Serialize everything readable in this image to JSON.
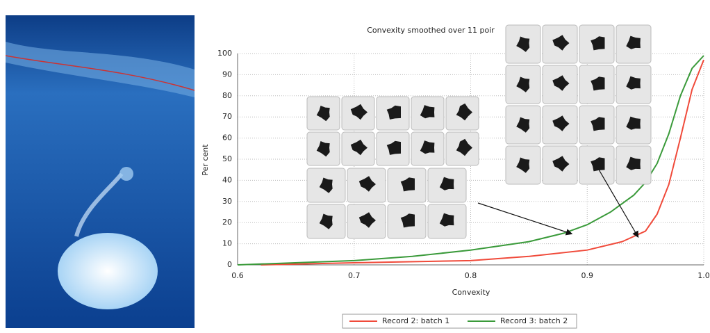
{
  "chart_data": {
    "type": "line",
    "title": "Convexity smoothed over 11 poir",
    "x_label": "Convexity",
    "y_label": "Per cent",
    "xlim": [
      0.6,
      1
    ],
    "xticks": [
      0.6,
      0.7,
      0.8,
      0.9,
      {
        "value": 1,
        "label": "1.0"
      }
    ],
    "ylim": [
      0,
      100
    ],
    "yticks": [
      0,
      10,
      20,
      30,
      40,
      50,
      60,
      70,
      80,
      90,
      100
    ],
    "grid": true,
    "legend": "bottom",
    "series": [
      {
        "name": "Record 2: batch 1",
        "color": "#f04a3a",
        "x": [
          0.62,
          0.7,
          0.8,
          0.85,
          0.9,
          0.93,
          0.95,
          0.96,
          0.97,
          0.98,
          0.99,
          1
        ],
        "values": [
          0,
          1,
          2,
          4,
          7,
          11,
          16,
          24,
          38,
          60,
          83,
          97
        ]
      },
      {
        "name": "Record 3: batch 2",
        "color": "#3a9a3a",
        "x": [
          0.6,
          0.7,
          0.75,
          0.8,
          0.85,
          0.88,
          0.9,
          0.92,
          0.94,
          0.95,
          0.96,
          0.97,
          0.98,
          0.99,
          1
        ],
        "values": [
          0,
          2,
          4,
          7,
          11,
          15,
          19,
          25,
          33,
          39,
          48,
          62,
          80,
          93,
          99
        ]
      }
    ]
  }
}
